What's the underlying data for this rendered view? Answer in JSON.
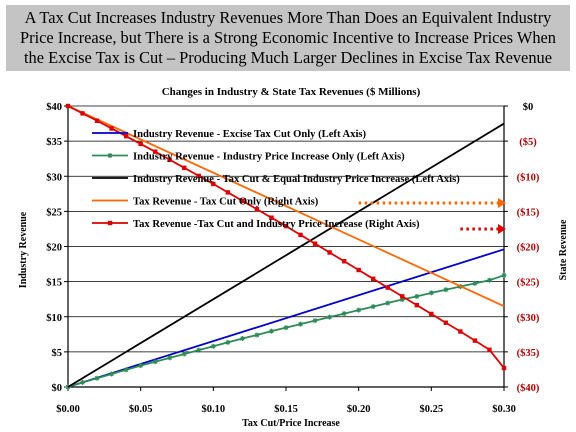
{
  "banner": {
    "line1": "A Tax Cut Increases Industry Revenues More Than Does an Equivalent Industry",
    "line2": "Price Increase, but There is a Strong Economic Incentive to Increase Prices When",
    "line3": "the Excise Tax is Cut – Producing Much Larger Declines in Excise Tax Revenue"
  },
  "chart_data": {
    "type": "line",
    "title": "Changes in Industry & State Tax Revenues ($ Millions)",
    "xlabel": "Tax Cut/Price Increase",
    "ylabel_left": "Industry Revenue",
    "ylabel_right": "State Revenue",
    "xlim": [
      0,
      0.3
    ],
    "ylim_left": [
      0,
      40
    ],
    "ylim_right": [
      -40,
      0
    ],
    "x_tick_labels": [
      "$0.00",
      "$0.05",
      "$0.10",
      "$0.15",
      "$0.20",
      "$0.25",
      "$0.30"
    ],
    "x_ticks": [
      0,
      0.05,
      0.1,
      0.15,
      0.2,
      0.25,
      0.3
    ],
    "y_left_tick_labels": [
      "$0",
      "$5",
      "$10",
      "$15",
      "$20",
      "$25",
      "$30",
      "$35",
      "$40"
    ],
    "y_left_ticks": [
      0,
      5,
      10,
      15,
      20,
      25,
      30,
      35,
      40
    ],
    "y_right_tick_labels": [
      "$0",
      "($5)",
      "($10)",
      "($15)",
      "($20)",
      "($25)",
      "($30)",
      "($35)",
      "($40)"
    ],
    "y_right_ticks": [
      0,
      -5,
      -10,
      -15,
      -20,
      -25,
      -30,
      -35,
      -40
    ],
    "grid": "horizontal",
    "legend_position": "upper-left, inside plot",
    "series": [
      {
        "name": "Industry Revenue - Excise Tax Cut Only (Left Axis)",
        "axis": "left",
        "color": "#0000cc",
        "marker": "none",
        "x": [
          0,
          0.3
        ],
        "y": [
          0,
          19.6
        ]
      },
      {
        "name": "Industry Revenue - Industry Price Increase Only (Left Axis)",
        "axis": "left",
        "color": "#2e8b57",
        "marker": "star",
        "x": [
          0,
          0.01,
          0.02,
          0.03,
          0.04,
          0.05,
          0.06,
          0.07,
          0.08,
          0.09,
          0.1,
          0.11,
          0.12,
          0.13,
          0.14,
          0.15,
          0.16,
          0.17,
          0.18,
          0.19,
          0.2,
          0.21,
          0.22,
          0.23,
          0.24,
          0.25,
          0.26,
          0.27,
          0.28,
          0.29,
          0.3
        ],
        "y": [
          0,
          0.65,
          1.25,
          1.85,
          2.45,
          3.05,
          3.6,
          4.15,
          4.7,
          5.25,
          5.8,
          6.35,
          6.9,
          7.4,
          7.95,
          8.45,
          8.95,
          9.45,
          9.95,
          10.45,
          10.95,
          11.45,
          11.95,
          12.45,
          12.9,
          13.4,
          13.85,
          14.3,
          14.75,
          15.2,
          15.9
        ]
      },
      {
        "name": "Industry Revenue - Tax Cut & Equal Industry Price Increase (Left Axis)",
        "axis": "left",
        "color": "#000000",
        "marker": "none",
        "x": [
          0,
          0.3
        ],
        "y": [
          0,
          37.5
        ]
      },
      {
        "name": "Tax Revenue - Tax Cut Only (Right Axis)",
        "axis": "right",
        "color": "#ff6600",
        "marker": "none",
        "x": [
          0,
          0.3
        ],
        "y": [
          0,
          -28.5
        ]
      },
      {
        "name": "Tax Revenue -Tax Cut and Industry Price Increase (Right Axis)",
        "axis": "right",
        "color": "#dd0000",
        "marker": "square",
        "x": [
          0,
          0.01,
          0.02,
          0.03,
          0.04,
          0.05,
          0.06,
          0.07,
          0.08,
          0.09,
          0.1,
          0.11,
          0.12,
          0.13,
          0.14,
          0.15,
          0.16,
          0.17,
          0.18,
          0.19,
          0.2,
          0.21,
          0.22,
          0.23,
          0.24,
          0.25,
          0.26,
          0.27,
          0.28,
          0.29,
          0.3
        ],
        "y": [
          0,
          -1.05,
          -2.1,
          -3.2,
          -4.3,
          -5.4,
          -6.5,
          -7.65,
          -8.8,
          -9.95,
          -11.1,
          -12.3,
          -13.5,
          -14.7,
          -15.9,
          -17.1,
          -18.35,
          -19.6,
          -20.85,
          -22.1,
          -23.35,
          -24.6,
          -25.85,
          -27.1,
          -28.35,
          -29.6,
          -30.85,
          -32.1,
          -33.4,
          -34.7,
          -37.3
        ]
      }
    ],
    "annotations": [
      {
        "type": "dotted-arrow",
        "color": "#ff6600",
        "x_from": 0.2,
        "x_to": 0.3,
        "y_right": -13.8
      },
      {
        "type": "dotted-arrow",
        "color": "#dd0000",
        "x_from": 0.27,
        "x_to": 0.3,
        "y_right": -17.5
      }
    ]
  }
}
